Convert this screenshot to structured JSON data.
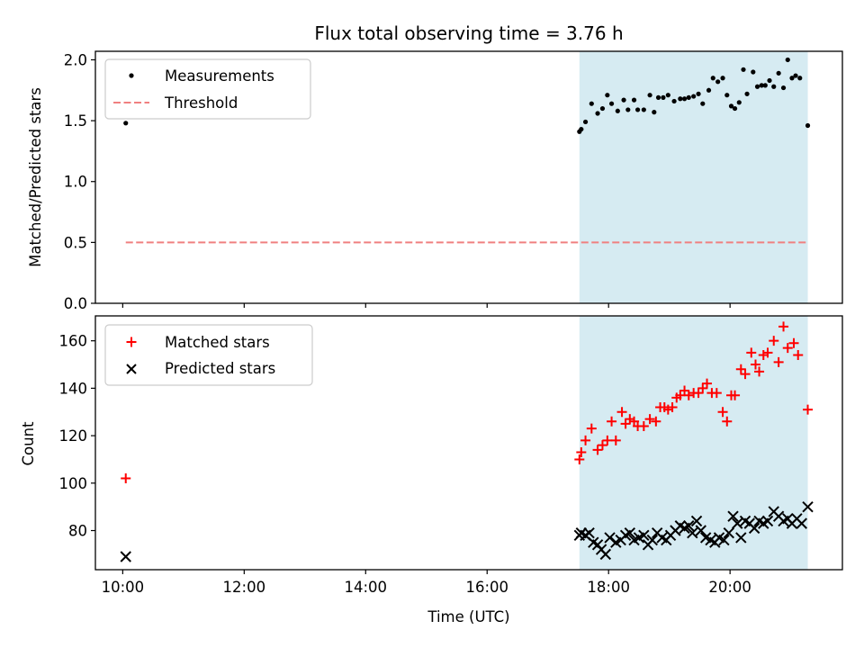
{
  "title": "Flux total observing time = 3.76 h",
  "colors": {
    "band": "#add8e6",
    "measurement": "#000000",
    "threshold": "#f08080",
    "matched": "#ff0000",
    "predicted": "#000000"
  },
  "chart_data": [
    {
      "type": "scatter",
      "ylabel": "Matched/Predicted stars",
      "xlim": [
        9.55,
        21.85
      ],
      "ylim": [
        0.0,
        2.07
      ],
      "xticks": [
        10,
        12,
        14,
        16,
        18,
        20
      ],
      "yticks": [
        0.0,
        0.5,
        1.0,
        1.5,
        2.0
      ],
      "ytick_labels": [
        "0.0",
        "0.5",
        "1.0",
        "1.5",
        "2.0"
      ],
      "shaded_span": [
        17.52,
        21.28
      ],
      "legend": {
        "placement": "upper left",
        "entries": [
          "Measurements",
          "Threshold"
        ]
      },
      "threshold": {
        "name": "Threshold",
        "value": 0.5,
        "x": [
          10.05,
          21.28
        ]
      },
      "series": [
        {
          "name": "Measurements",
          "points": [
            [
              10.05,
              1.48
            ],
            [
              17.52,
              1.41
            ],
            [
              17.55,
              1.43
            ],
            [
              17.62,
              1.49
            ],
            [
              17.72,
              1.64
            ],
            [
              17.82,
              1.56
            ],
            [
              17.9,
              1.6
            ],
            [
              17.98,
              1.71
            ],
            [
              18.05,
              1.64
            ],
            [
              18.15,
              1.58
            ],
            [
              18.25,
              1.67
            ],
            [
              18.32,
              1.59
            ],
            [
              18.42,
              1.67
            ],
            [
              18.48,
              1.59
            ],
            [
              18.58,
              1.59
            ],
            [
              18.68,
              1.71
            ],
            [
              18.75,
              1.57
            ],
            [
              18.82,
              1.69
            ],
            [
              18.9,
              1.69
            ],
            [
              18.98,
              1.71
            ],
            [
              19.08,
              1.66
            ],
            [
              19.18,
              1.68
            ],
            [
              19.25,
              1.68
            ],
            [
              19.32,
              1.69
            ],
            [
              19.4,
              1.7
            ],
            [
              19.48,
              1.72
            ],
            [
              19.55,
              1.64
            ],
            [
              19.65,
              1.75
            ],
            [
              19.72,
              1.85
            ],
            [
              19.8,
              1.82
            ],
            [
              19.88,
              1.85
            ],
            [
              19.95,
              1.71
            ],
            [
              20.02,
              1.62
            ],
            [
              20.08,
              1.6
            ],
            [
              20.15,
              1.65
            ],
            [
              20.22,
              1.92
            ],
            [
              20.28,
              1.72
            ],
            [
              20.38,
              1.9
            ],
            [
              20.45,
              1.78
            ],
            [
              20.52,
              1.79
            ],
            [
              20.58,
              1.79
            ],
            [
              20.65,
              1.83
            ],
            [
              20.72,
              1.78
            ],
            [
              20.8,
              1.89
            ],
            [
              20.88,
              1.77
            ],
            [
              20.95,
              2.0
            ],
            [
              21.02,
              1.85
            ],
            [
              21.08,
              1.87
            ],
            [
              21.15,
              1.85
            ],
            [
              21.28,
              1.46
            ]
          ]
        }
      ]
    },
    {
      "type": "scatter",
      "xlabel": "Time (UTC)",
      "ylabel": "Count",
      "xlim": [
        9.55,
        21.85
      ],
      "ylim": [
        63.5,
        170.5
      ],
      "xticks": [
        10,
        12,
        14,
        16,
        18,
        20
      ],
      "xtick_labels": [
        "10:00",
        "12:00",
        "14:00",
        "16:00",
        "18:00",
        "20:00"
      ],
      "yticks": [
        80,
        100,
        120,
        140,
        160
      ],
      "ytick_labels": [
        "80",
        "100",
        "120",
        "140",
        "160"
      ],
      "shaded_span": [
        17.52,
        21.28
      ],
      "legend": {
        "placement": "upper left",
        "entries": [
          "Matched stars",
          "Predicted stars"
        ]
      },
      "series": [
        {
          "name": "Matched stars",
          "marker": "plus",
          "points": [
            [
              10.05,
              102
            ],
            [
              17.52,
              110
            ],
            [
              17.55,
              113
            ],
            [
              17.62,
              118
            ],
            [
              17.72,
              123
            ],
            [
              17.82,
              114
            ],
            [
              17.9,
              116
            ],
            [
              17.98,
              118
            ],
            [
              18.05,
              126
            ],
            [
              18.12,
              118
            ],
            [
              18.22,
              130
            ],
            [
              18.28,
              125
            ],
            [
              18.35,
              127
            ],
            [
              18.42,
              126
            ],
            [
              18.48,
              124
            ],
            [
              18.58,
              124
            ],
            [
              18.68,
              127
            ],
            [
              18.78,
              126
            ],
            [
              18.85,
              132
            ],
            [
              18.92,
              132
            ],
            [
              18.98,
              131
            ],
            [
              19.05,
              132
            ],
            [
              19.12,
              136
            ],
            [
              19.18,
              137
            ],
            [
              19.25,
              139
            ],
            [
              19.32,
              137
            ],
            [
              19.4,
              138
            ],
            [
              19.48,
              138
            ],
            [
              19.55,
              140
            ],
            [
              19.62,
              142
            ],
            [
              19.7,
              138
            ],
            [
              19.78,
              138
            ],
            [
              19.88,
              130
            ],
            [
              19.95,
              126
            ],
            [
              20.02,
              137
            ],
            [
              20.08,
              137
            ],
            [
              20.18,
              148
            ],
            [
              20.25,
              146
            ],
            [
              20.35,
              155
            ],
            [
              20.42,
              150
            ],
            [
              20.48,
              147
            ],
            [
              20.55,
              154
            ],
            [
              20.62,
              155
            ],
            [
              20.72,
              160
            ],
            [
              20.8,
              151
            ],
            [
              20.88,
              166
            ],
            [
              20.95,
              157
            ],
            [
              21.05,
              159
            ],
            [
              21.12,
              154
            ],
            [
              21.28,
              131
            ]
          ]
        },
        {
          "name": "Predicted stars",
          "marker": "x",
          "points": [
            [
              10.05,
              69
            ],
            [
              17.52,
              78
            ],
            [
              17.55,
              79
            ],
            [
              17.62,
              78
            ],
            [
              17.68,
              79
            ],
            [
              17.75,
              75
            ],
            [
              17.82,
              74
            ],
            [
              17.88,
              72
            ],
            [
              17.95,
              70
            ],
            [
              18.02,
              77
            ],
            [
              18.12,
              75
            ],
            [
              18.2,
              76
            ],
            [
              18.28,
              78
            ],
            [
              18.35,
              79
            ],
            [
              18.42,
              76
            ],
            [
              18.5,
              77
            ],
            [
              18.58,
              78
            ],
            [
              18.65,
              74
            ],
            [
              18.72,
              76
            ],
            [
              18.8,
              79
            ],
            [
              18.88,
              77
            ],
            [
              18.95,
              76
            ],
            [
              19.02,
              78
            ],
            [
              19.1,
              80
            ],
            [
              19.18,
              82
            ],
            [
              19.25,
              81
            ],
            [
              19.32,
              82
            ],
            [
              19.38,
              79
            ],
            [
              19.45,
              84
            ],
            [
              19.52,
              80
            ],
            [
              19.6,
              77
            ],
            [
              19.68,
              76
            ],
            [
              19.75,
              75
            ],
            [
              19.82,
              77
            ],
            [
              19.9,
              76
            ],
            [
              19.98,
              79
            ],
            [
              20.05,
              86
            ],
            [
              20.12,
              83
            ],
            [
              20.18,
              77
            ],
            [
              20.25,
              84
            ],
            [
              20.32,
              83
            ],
            [
              20.4,
              81
            ],
            [
              20.48,
              84
            ],
            [
              20.55,
              83
            ],
            [
              20.62,
              84
            ],
            [
              20.72,
              88
            ],
            [
              20.8,
              86
            ],
            [
              20.88,
              84
            ],
            [
              20.95,
              85
            ],
            [
              21.02,
              83
            ],
            [
              21.1,
              85
            ],
            [
              21.18,
              83
            ],
            [
              21.28,
              90
            ]
          ]
        }
      ]
    }
  ]
}
